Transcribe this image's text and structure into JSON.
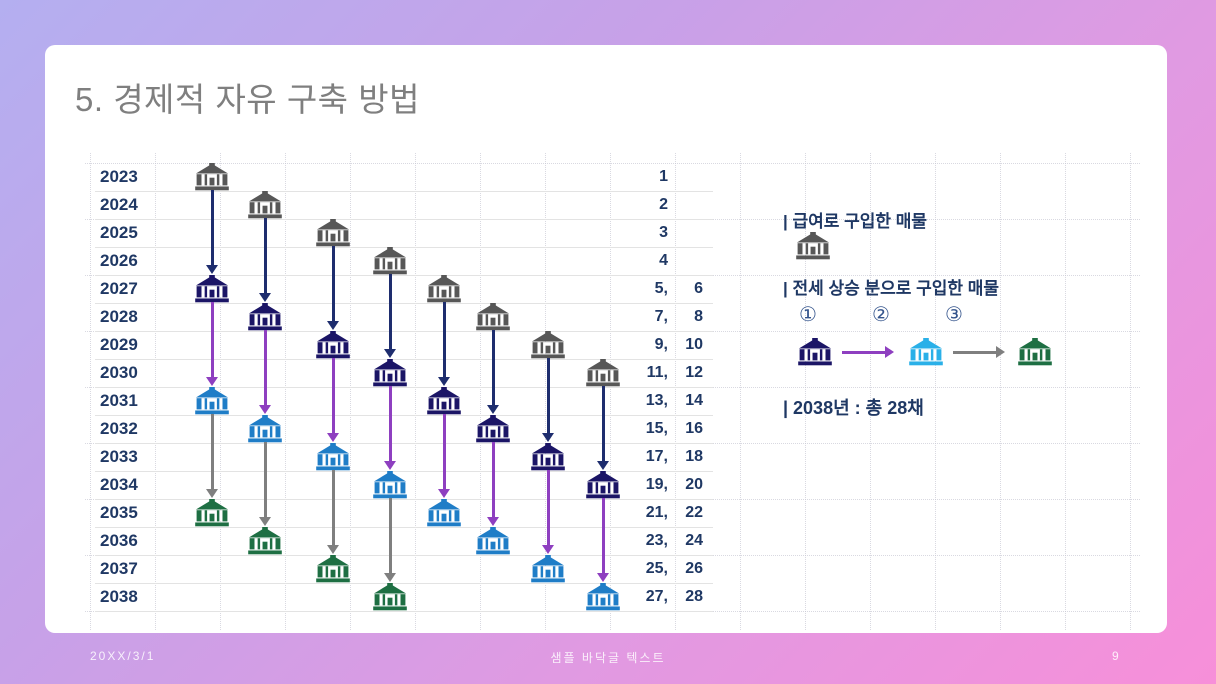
{
  "title": "5. 경제적 자유 구축 방법",
  "footer": {
    "date": "20XX/3/1",
    "center": "샘플 바닥글 텍스트",
    "page": "9"
  },
  "legend": {
    "salary_label": "| 급여로 구입한 매물",
    "jeonse_label": "| 전세 상승 분으로 구입한 매물",
    "steps": [
      "①",
      "②",
      "③"
    ],
    "total_label": "| 2038년 : 총 28채"
  },
  "colors": {
    "salary": "#575757",
    "step1": "#1b1566",
    "step2": "#1f7dc7",
    "step2_legend": "#2ab0e8",
    "step3": "#1e6f43",
    "arrow_to_step1": "#1e2d6e",
    "arrow_to_step2": "#8e3fc0",
    "arrow_to_step3": "#7f7f7f",
    "text_navy": "#1f3864"
  },
  "chart_data": {
    "type": "icon-matrix-timeline",
    "title": "경제적 자유 구축 방법 (주택 매입 타임라인)",
    "years": [
      "2023",
      "2024",
      "2025",
      "2026",
      "2027",
      "2028",
      "2029",
      "2030",
      "2031",
      "2032",
      "2033",
      "2034",
      "2035",
      "2036",
      "2037",
      "2038"
    ],
    "counts": [
      [
        "1"
      ],
      [
        "2"
      ],
      [
        "3"
      ],
      [
        "4"
      ],
      [
        "5",
        "6"
      ],
      [
        "7",
        "8"
      ],
      [
        "9",
        "10"
      ],
      [
        "11",
        "12"
      ],
      [
        "13",
        "14"
      ],
      [
        "15",
        "16"
      ],
      [
        "17",
        "18"
      ],
      [
        "19",
        "20"
      ],
      [
        "21",
        "22"
      ],
      [
        "23",
        "24"
      ],
      [
        "25",
        "26"
      ],
      [
        "27",
        "28"
      ]
    ],
    "total": 28,
    "stage_meaning": {
      "salary": "급여로 구입한 매물",
      "step1": "전세 상승 분으로 구입한 매물 ①",
      "step2": "전세 상승 분으로 구입한 매물 ②",
      "step3": "전세 상승 분으로 구입한 매물 ③"
    },
    "columns": [
      {
        "purchases": [
          {
            "year": 2023,
            "stage": "salary"
          },
          {
            "year": 2027,
            "stage": "step1"
          },
          {
            "year": 2031,
            "stage": "step2"
          },
          {
            "year": 2035,
            "stage": "step3"
          }
        ]
      },
      {
        "purchases": [
          {
            "year": 2024,
            "stage": "salary"
          },
          {
            "year": 2028,
            "stage": "step1"
          },
          {
            "year": 2032,
            "stage": "step2"
          },
          {
            "year": 2036,
            "stage": "step3"
          }
        ]
      },
      {
        "purchases": [
          {
            "year": 2025,
            "stage": "salary"
          },
          {
            "year": 2029,
            "stage": "step1"
          },
          {
            "year": 2033,
            "stage": "step2"
          },
          {
            "year": 2037,
            "stage": "step3"
          }
        ]
      },
      {
        "purchases": [
          {
            "year": 2026,
            "stage": "salary"
          },
          {
            "year": 2030,
            "stage": "step1"
          },
          {
            "year": 2034,
            "stage": "step2"
          },
          {
            "year": 2038,
            "stage": "step3"
          }
        ]
      },
      {
        "purchases": [
          {
            "year": 2027,
            "stage": "salary"
          },
          {
            "year": 2031,
            "stage": "step1"
          },
          {
            "year": 2035,
            "stage": "step2"
          }
        ]
      },
      {
        "purchases": [
          {
            "year": 2028,
            "stage": "salary"
          },
          {
            "year": 2032,
            "stage": "step1"
          },
          {
            "year": 2036,
            "stage": "step2"
          }
        ]
      },
      {
        "purchases": [
          {
            "year": 2029,
            "stage": "salary"
          },
          {
            "year": 2033,
            "stage": "step1"
          },
          {
            "year": 2037,
            "stage": "step2"
          }
        ]
      },
      {
        "purchases": [
          {
            "year": 2030,
            "stage": "salary"
          },
          {
            "year": 2034,
            "stage": "step1"
          },
          {
            "year": 2038,
            "stage": "step2"
          }
        ]
      }
    ]
  }
}
